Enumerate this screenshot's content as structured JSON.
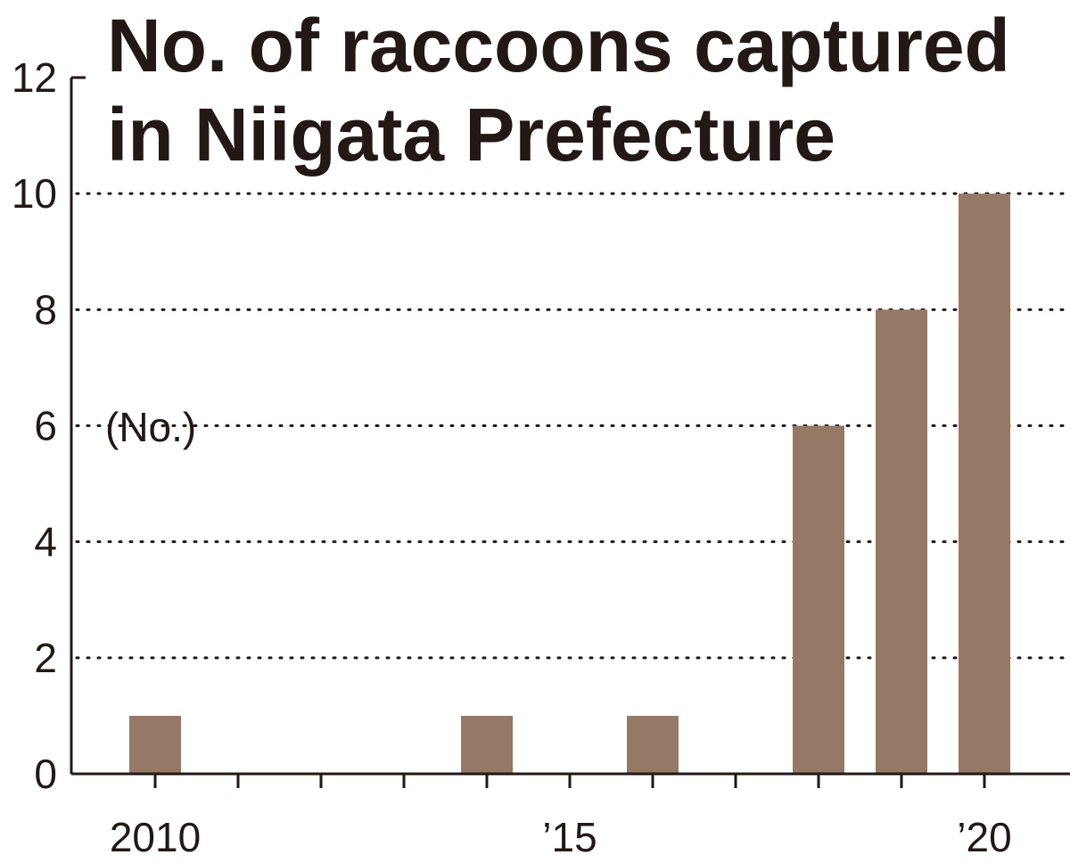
{
  "chart_data": {
    "type": "bar",
    "title_lines": [
      "No. of raccoons captured",
      "in Niigata Prefecture"
    ],
    "ylabel": "(No.)",
    "ylim": [
      0,
      12
    ],
    "yticks": [
      0,
      2,
      4,
      6,
      8,
      10,
      12
    ],
    "grid": "horizontal dotted lines at 2, 4, 6, 8, 10",
    "x_range": [
      2009.5,
      2021
    ],
    "x_tick_years": [
      2010,
      2011,
      2012,
      2013,
      2014,
      2015,
      2016,
      2017,
      2018,
      2019,
      2020
    ],
    "x_tick_labels": [
      {
        "year": 2010,
        "label": "2010"
      },
      {
        "year": 2015,
        "label": "’15"
      },
      {
        "year": 2020,
        "label": "’20"
      }
    ],
    "bar_color": "#957865",
    "points": [
      {
        "x": 2010,
        "y": 1
      },
      {
        "x": 2014,
        "y": 1
      },
      {
        "x": 2016,
        "y": 1
      },
      {
        "x": 2018,
        "y": 6
      },
      {
        "x": 2019,
        "y": 8
      },
      {
        "x": 2020,
        "y": 10
      }
    ]
  }
}
